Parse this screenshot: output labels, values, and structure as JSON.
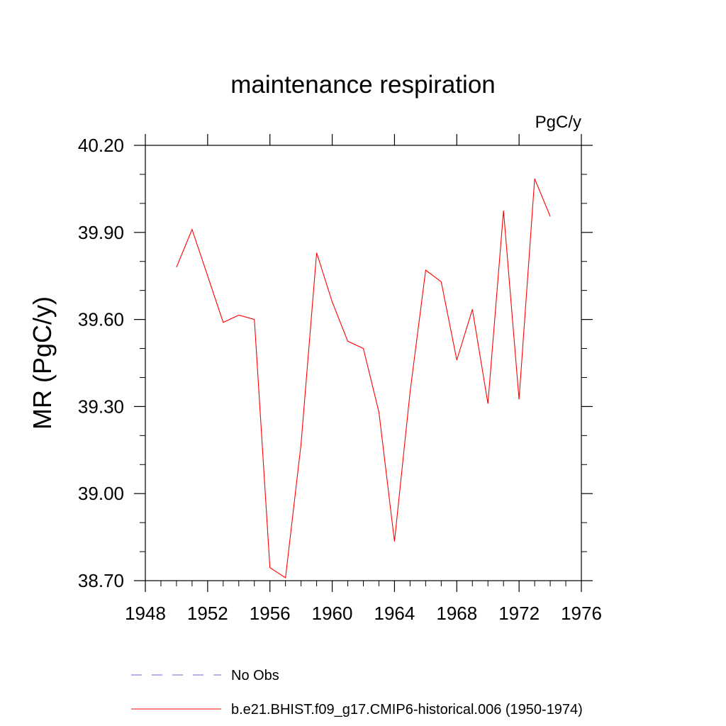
{
  "chart_data": {
    "type": "line",
    "title": "maintenance respiration",
    "units_label": "PgC/y",
    "ylabel": "MR  (PgC/y)",
    "xlabel": "",
    "xlim": [
      1948,
      1976
    ],
    "ylim": [
      38.7,
      40.2
    ],
    "x_ticks": [
      1948,
      1952,
      1956,
      1960,
      1964,
      1968,
      1972,
      1976
    ],
    "x_tick_labels": [
      "1948",
      "1952",
      "1956",
      "1960",
      "1964",
      "1968",
      "1972",
      "1976"
    ],
    "y_ticks": [
      38.7,
      39.0,
      39.3,
      39.6,
      39.9,
      40.2
    ],
    "y_tick_labels": [
      "38.70",
      "39.00",
      "39.30",
      "39.60",
      "39.90",
      "40.20"
    ],
    "grid": false,
    "legend_position": "bottom",
    "series": [
      {
        "name": "b.e21.BHIST.f09_g17.CMIP6-historical.006 (1950-1974)",
        "color": "#ff0000",
        "style": "solid",
        "x": [
          1950,
          1951,
          1952,
          1953,
          1954,
          1955,
          1956,
          1957,
          1958,
          1959,
          1960,
          1961,
          1962,
          1963,
          1964,
          1965,
          1966,
          1967,
          1968,
          1969,
          1970,
          1971,
          1972,
          1973,
          1974
        ],
        "values": [
          39.78,
          39.91,
          39.75,
          39.59,
          39.615,
          39.6,
          38.745,
          38.71,
          39.17,
          39.83,
          39.66,
          39.525,
          39.5,
          39.28,
          38.835,
          39.35,
          39.77,
          39.73,
          39.46,
          39.635,
          39.31,
          39.975,
          39.325,
          40.085,
          39.955
        ]
      }
    ],
    "legend": [
      {
        "label": "No Obs",
        "color": "#6a6ad0",
        "style": "dashed"
      },
      {
        "label": "b.e21.BHIST.f09_g17.CMIP6-historical.006 (1950-1974)",
        "color": "#ff0000",
        "style": "solid"
      }
    ]
  }
}
